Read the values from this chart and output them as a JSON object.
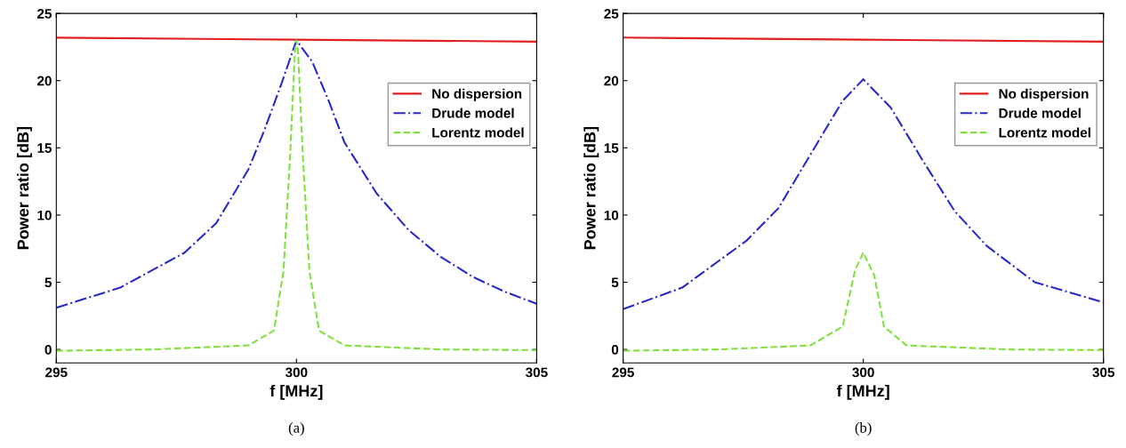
{
  "chart_data": [
    {
      "type": "line",
      "xlabel": "f [MHz]",
      "ylabel": "Power ratio [dB]",
      "xlim": [
        295,
        305
      ],
      "ylim": [
        -1,
        25
      ],
      "xticks": [
        295,
        300,
        305
      ],
      "yticks": [
        0,
        5,
        10,
        15,
        20,
        25
      ],
      "grid": false,
      "legend": "top right",
      "marker": "none",
      "annotations": [
        "(a)"
      ],
      "series": [
        {
          "name": "No dispersion",
          "color": "#e02020",
          "line_style": "solid",
          "x": [
            295,
            300,
            305
          ],
          "values": [
            23.2,
            23.05,
            22.9
          ]
        },
        {
          "name": "Drude model",
          "color": "#2828c8",
          "line_style": "dashdot",
          "x": [
            295,
            296.33,
            297.67,
            298.33,
            299,
            299.33,
            299.67,
            300,
            300.33,
            300.67,
            301,
            301.67,
            302.33,
            303,
            303.67,
            304.33,
            305
          ],
          "values": [
            3.1,
            4.6,
            7.2,
            9.4,
            13.4,
            16.3,
            19.6,
            23,
            21.4,
            18.5,
            15.4,
            11.6,
            8.9,
            6.9,
            5.4,
            4.3,
            3.4
          ]
        },
        {
          "name": "Lorentz model",
          "color": "#80e040",
          "line_style": "dashed",
          "x": [
            295,
            297,
            299,
            299.53,
            299.73,
            299.87,
            299.97,
            300,
            300.03,
            300.13,
            300.27,
            300.47,
            301,
            303,
            305
          ],
          "values": [
            -0.1,
            0,
            0.3,
            1.4,
            5.8,
            14.6,
            22.3,
            23,
            22.3,
            14.6,
            5.8,
            1.4,
            0.3,
            0,
            -0.05
          ]
        }
      ]
    },
    {
      "type": "line",
      "xlabel": "f [MHz]",
      "ylabel": "Power ratio [dB]",
      "xlim": [
        295,
        305
      ],
      "ylim": [
        -1,
        25
      ],
      "xticks": [
        295,
        300,
        305
      ],
      "yticks": [
        0,
        5,
        10,
        15,
        20,
        25
      ],
      "grid": false,
      "legend": "top right",
      "marker": "none",
      "annotations": [
        "(b)"
      ],
      "series": [
        {
          "name": "No dispersion",
          "color": "#e02020",
          "line_style": "solid",
          "x": [
            295,
            300,
            305
          ],
          "values": [
            23.2,
            23.05,
            22.9
          ]
        },
        {
          "name": "Drude model",
          "color": "#2828c8",
          "line_style": "dashdot",
          "x": [
            295,
            296.23,
            297.57,
            298.23,
            298.9,
            299.57,
            300,
            300.57,
            301.23,
            301.9,
            302.57,
            303.57,
            305
          ],
          "values": [
            3.0,
            4.6,
            8.1,
            10.5,
            14.5,
            18.5,
            20.1,
            18.0,
            14.1,
            10.3,
            7.7,
            5.0,
            3.5
          ]
        },
        {
          "name": "Lorentz model",
          "color": "#80e040",
          "line_style": "dashed",
          "x": [
            295,
            297,
            298.9,
            299.57,
            299.83,
            300,
            300.23,
            300.43,
            300.9,
            303,
            305
          ],
          "values": [
            -0.1,
            0,
            0.3,
            1.7,
            5.9,
            7.2,
            5.5,
            1.7,
            0.3,
            0,
            -0.05
          ]
        }
      ]
    }
  ]
}
